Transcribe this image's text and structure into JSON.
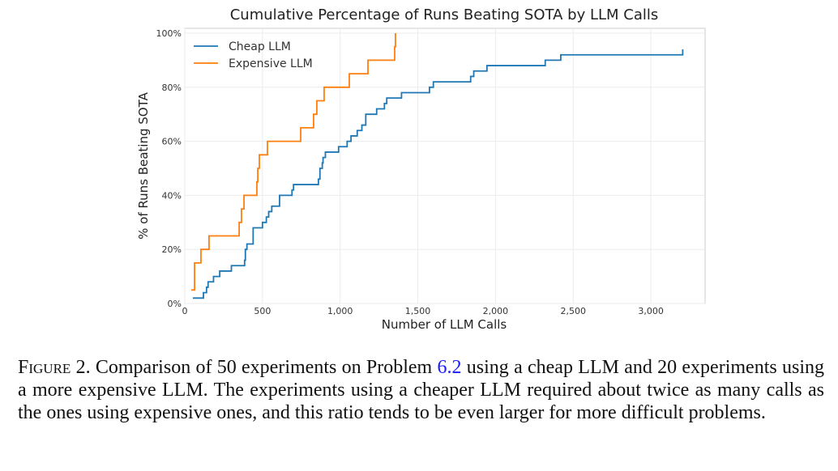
{
  "chart_data": {
    "type": "line",
    "step": true,
    "title": "Cumulative Percentage of Runs Beating SOTA by LLM Calls",
    "xlabel": "Number of LLM Calls",
    "ylabel": "% of Runs Beating SOTA",
    "xlim": [
      0,
      3350
    ],
    "ylim": [
      0,
      100
    ],
    "xticks": [
      0,
      500,
      1000,
      1500,
      2000,
      2500,
      3000
    ],
    "xtick_labels": [
      "0",
      "500",
      "1,000",
      "1,500",
      "2,000",
      "2,500",
      "3,000"
    ],
    "yticks": [
      0,
      20,
      40,
      60,
      80,
      100
    ],
    "ytick_labels": [
      "0%",
      "20%",
      "40%",
      "60%",
      "80%",
      "100%"
    ],
    "grid": true,
    "legend_position": "top-left",
    "series": [
      {
        "name": "Cheap LLM",
        "color": "#1f77b4",
        "points": [
          [
            52,
            2
          ],
          [
            120,
            4
          ],
          [
            140,
            6
          ],
          [
            150,
            8
          ],
          [
            185,
            10
          ],
          [
            225,
            12
          ],
          [
            300,
            14
          ],
          [
            385,
            16
          ],
          [
            390,
            20
          ],
          [
            400,
            22
          ],
          [
            440,
            28
          ],
          [
            500,
            30
          ],
          [
            525,
            32
          ],
          [
            540,
            34
          ],
          [
            560,
            36
          ],
          [
            610,
            40
          ],
          [
            690,
            42
          ],
          [
            700,
            44
          ],
          [
            860,
            46
          ],
          [
            870,
            50
          ],
          [
            885,
            52
          ],
          [
            890,
            54
          ],
          [
            905,
            56
          ],
          [
            990,
            58
          ],
          [
            1045,
            60
          ],
          [
            1070,
            62
          ],
          [
            1110,
            64
          ],
          [
            1140,
            66
          ],
          [
            1165,
            70
          ],
          [
            1235,
            72
          ],
          [
            1285,
            74
          ],
          [
            1300,
            76
          ],
          [
            1395,
            78
          ],
          [
            1575,
            80
          ],
          [
            1600,
            82
          ],
          [
            1840,
            84
          ],
          [
            1860,
            86
          ],
          [
            1945,
            88
          ],
          [
            2320,
            90
          ],
          [
            2420,
            92
          ],
          [
            3205,
            92
          ],
          [
            3205,
            94
          ]
        ]
      },
      {
        "name": "Expensive LLM",
        "color": "#ff7f0e",
        "points": [
          [
            42,
            5
          ],
          [
            63,
            15
          ],
          [
            104,
            20
          ],
          [
            156,
            25
          ],
          [
            350,
            30
          ],
          [
            365,
            35
          ],
          [
            381,
            40
          ],
          [
            464,
            45
          ],
          [
            470,
            50
          ],
          [
            480,
            55
          ],
          [
            532,
            60
          ],
          [
            746,
            65
          ],
          [
            829,
            70
          ],
          [
            850,
            75
          ],
          [
            897,
            80
          ],
          [
            1059,
            85
          ],
          [
            1179,
            90
          ],
          [
            1351,
            95
          ],
          [
            1356,
            100
          ]
        ]
      }
    ]
  },
  "caption": {
    "label": "Figure 2.",
    "text_before_ref": " Comparison of 50 experiments on Problem ",
    "ref": "6.2",
    "text_after_ref": " using a cheap LLM and 20 experiments using a more expensive LLM. The experiments using a cheaper LLM required about twice as many calls as the ones using expensive ones, and this ratio tends to be even larger for more difficult problems."
  }
}
